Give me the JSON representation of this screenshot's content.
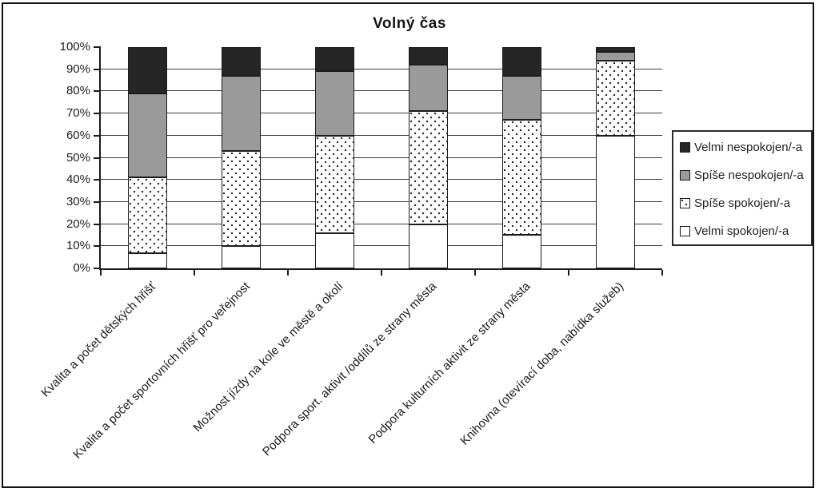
{
  "title": "Volný čas",
  "chart_data": {
    "type": "bar",
    "stacked": true,
    "units": "percent",
    "title": "Volný čas",
    "xlabel": "",
    "ylabel": "",
    "ylim": [
      0,
      100
    ],
    "grid": "horizontal every 10%",
    "legend_position": "right",
    "categories": [
      "Kvalita a počet dětských hřišť",
      "Kvalita a počet sportovních hřišť pro veřejnost",
      "Možnost jízdy na kole ve městě a okolí",
      "Podpora sport. aktivit /oddílů ze strany města",
      "Podpora kulturních aktivit ze strany města",
      "Knihovna (otevírací doba, nabídka služeb)"
    ],
    "series": [
      {
        "name": "Velmi spokojen/-a",
        "style": "white",
        "values": [
          7,
          10,
          16,
          20,
          15,
          60
        ]
      },
      {
        "name": "Spíše spokojen/-a",
        "style": "dotted",
        "values": [
          34,
          43,
          44,
          51,
          52,
          34
        ]
      },
      {
        "name": "Spíše nespokojen/-a",
        "style": "gray",
        "values": [
          38,
          34,
          29,
          21,
          20,
          4
        ]
      },
      {
        "name": "Velmi nespokojen/-a",
        "style": "black",
        "values": [
          21,
          13,
          11,
          8,
          13,
          2
        ]
      }
    ],
    "y_ticks": [
      "0%",
      "10%",
      "20%",
      "30%",
      "40%",
      "50%",
      "60%",
      "70%",
      "80%",
      "90%",
      "100%"
    ],
    "legend": {
      "items": [
        {
          "label": "Velmi nespokojen/-a",
          "style": "black"
        },
        {
          "label": "Spíše nespokojen/-a",
          "style": "gray"
        },
        {
          "label": "Spíše spokojen/-a",
          "style": "dotted"
        },
        {
          "label": "Velmi spokojen/-a",
          "style": "white"
        }
      ]
    }
  },
  "colors": {
    "series_black": "#262626",
    "series_gray": "#9a9a9a",
    "series_dotted_dot": "#2a2a2a",
    "series_white": "#ffffff",
    "border": "#1c1c1c",
    "gridline": "#3c3c3c",
    "text": "#1f1f1f",
    "background": "#ffffff"
  }
}
